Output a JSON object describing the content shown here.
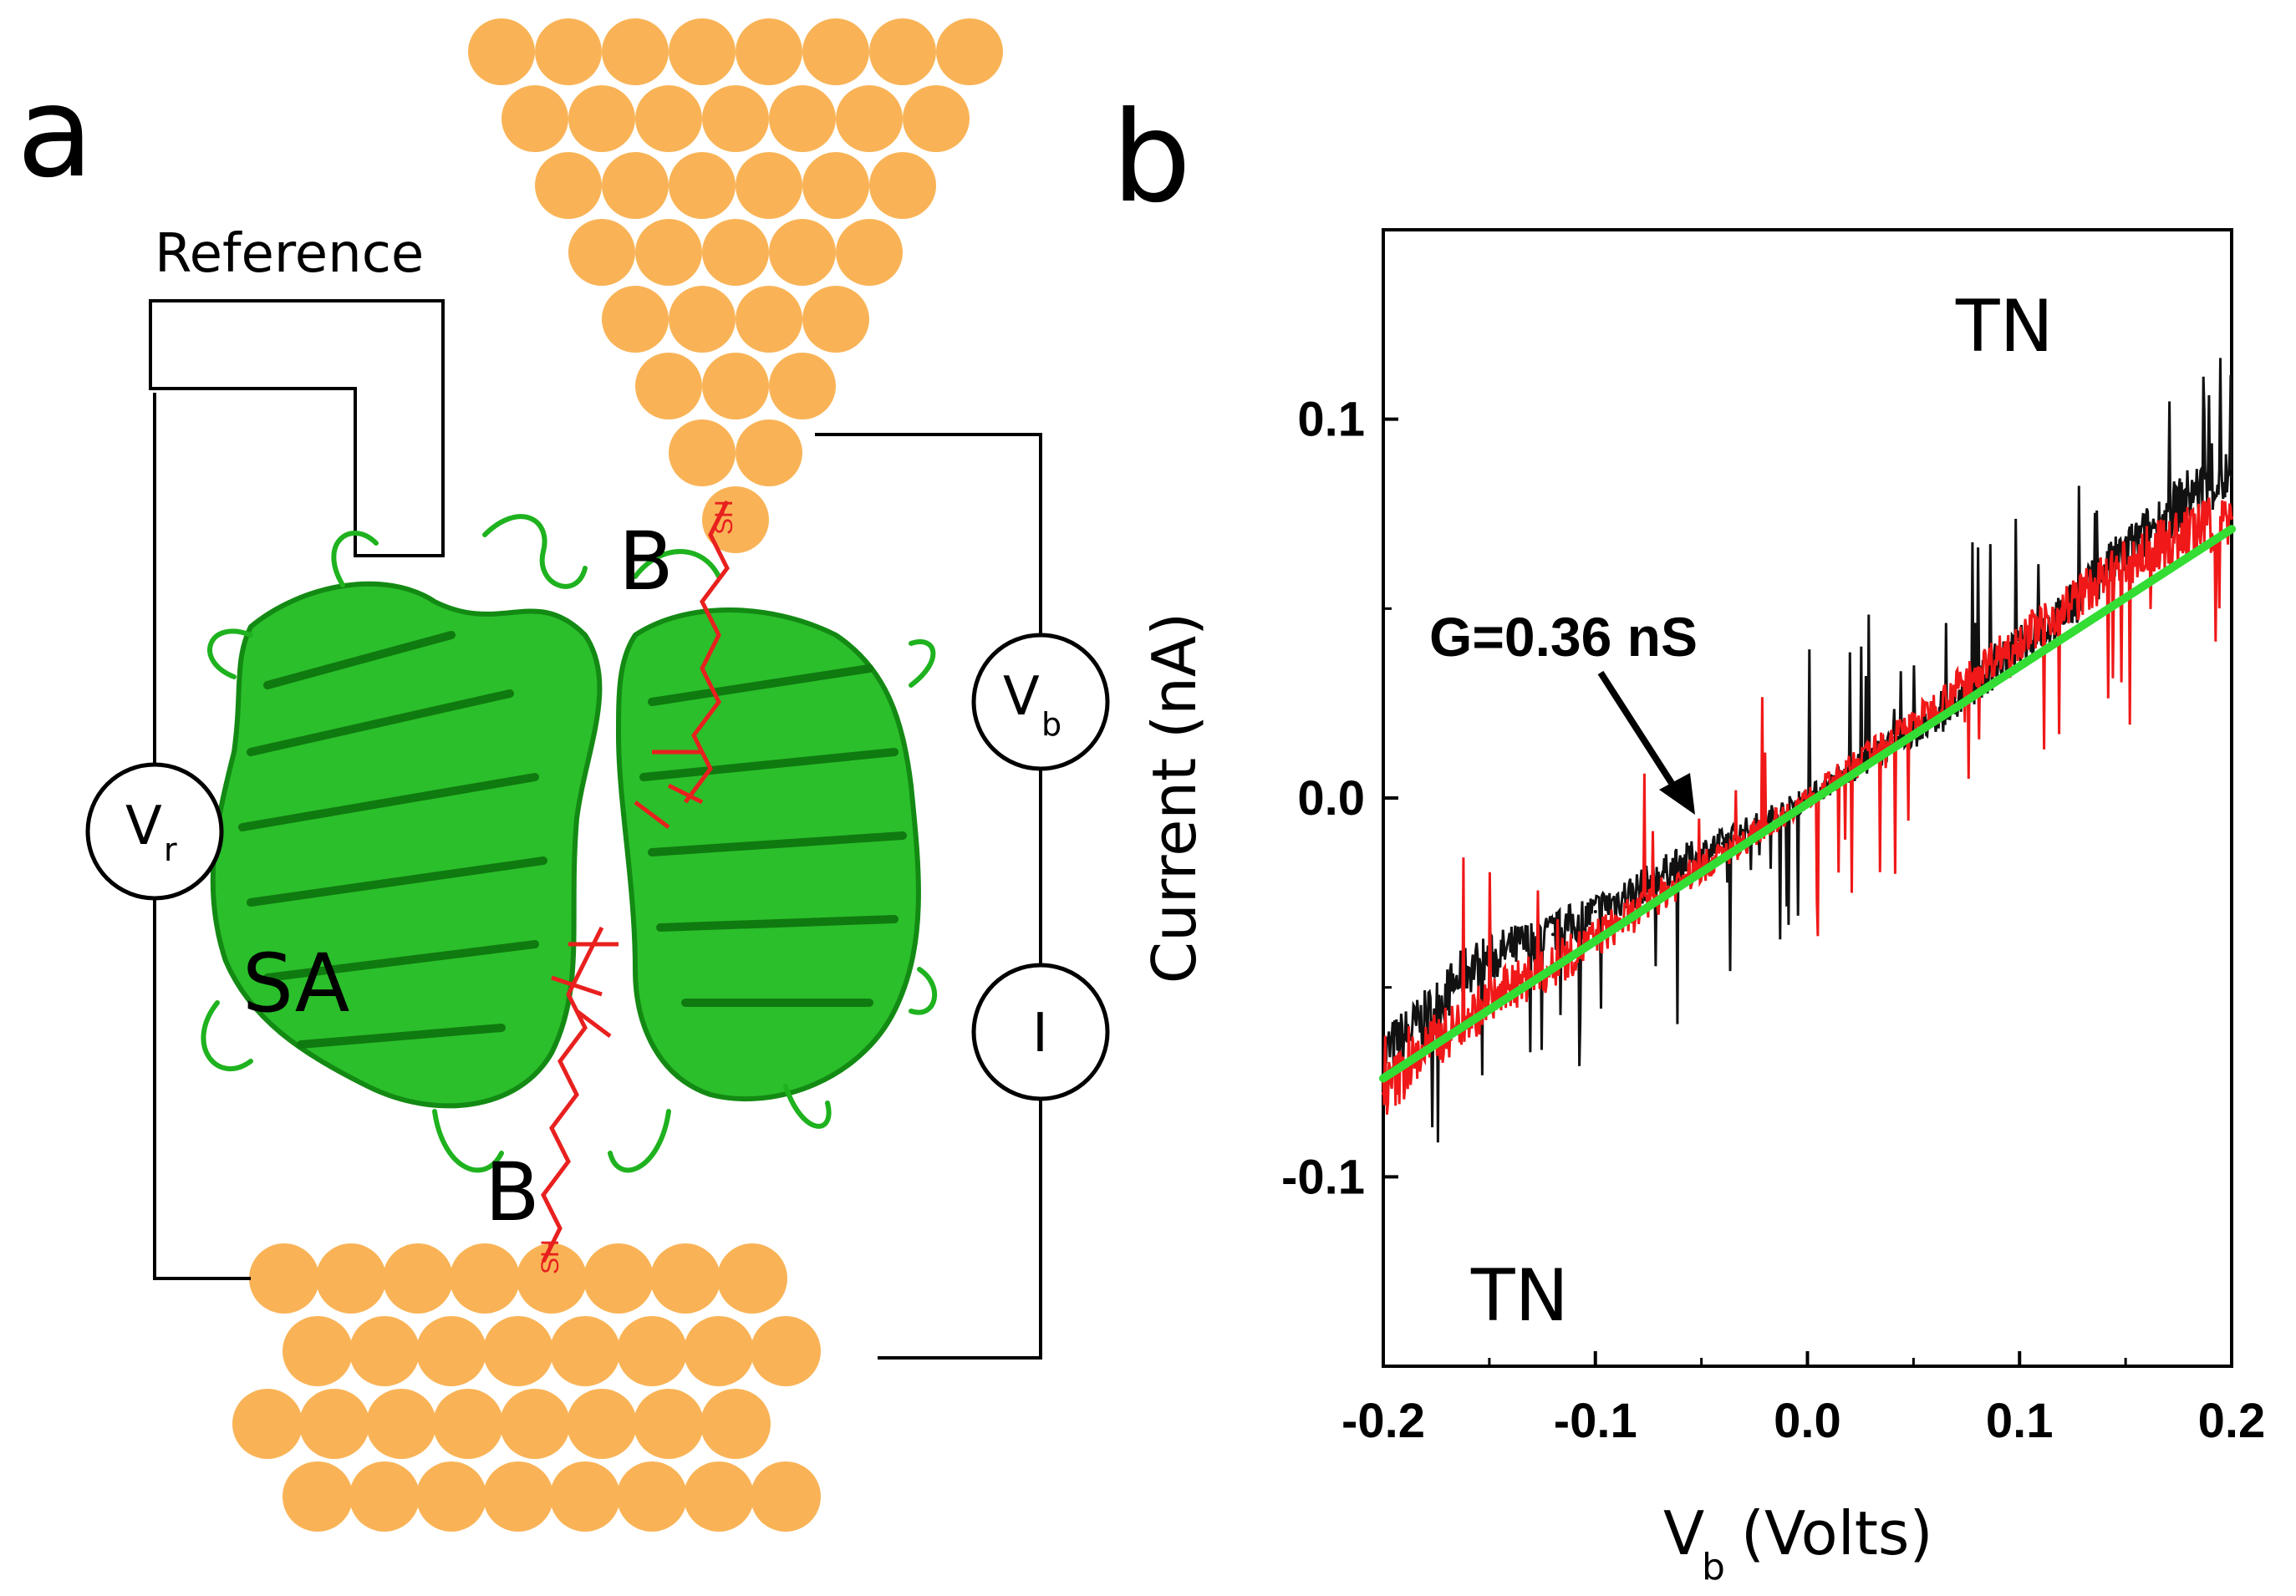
{
  "panel_a": {
    "letter": "a",
    "reference_label": "Reference",
    "vr_label": "V",
    "vr_sub": "r",
    "vb_label": "V",
    "vb_sub": "b",
    "i_label": "I",
    "protein_label": "SA",
    "biotin_top": "B",
    "biotin_bottom": "B",
    "thiol": "SH",
    "colors": {
      "electrode": "#f9b356",
      "protein": "#1fb21f",
      "molecule": "#e8201e"
    }
  },
  "panel_b": {
    "letter": "b",
    "annotation": "G=0.36 nS",
    "tn_top": "TN",
    "tn_bottom": "TN"
  },
  "chart_data": {
    "type": "line",
    "title": "",
    "xlabel_main": "V",
    "xlabel_sub": "b",
    "xlabel_rest": " (Volts)",
    "ylabel": "Current (nA)",
    "xlim": [
      -0.2,
      0.2
    ],
    "ylim": [
      -0.15,
      0.15
    ],
    "x_ticks": [
      "-0.2",
      "-0.1",
      "0.0",
      "0.1",
      "0.2"
    ],
    "x_tick_values": [
      -0.2,
      -0.1,
      0.0,
      0.1,
      0.2
    ],
    "y_ticks": [
      "-0.1",
      "0.0",
      "0.1"
    ],
    "y_tick_values": [
      -0.1,
      0.0,
      0.1
    ],
    "series": [
      {
        "name": "sweep (black)",
        "color": "#111111",
        "x": [
          -0.2,
          -0.18,
          -0.16,
          -0.14,
          -0.12,
          -0.1,
          -0.08,
          -0.06,
          -0.04,
          -0.02,
          0.0,
          0.02,
          0.04,
          0.06,
          0.08,
          0.1,
          0.12,
          0.14,
          0.16,
          0.18,
          0.2
        ],
        "y": [
          -0.068,
          -0.058,
          -0.045,
          -0.04,
          -0.036,
          -0.03,
          -0.024,
          -0.017,
          -0.012,
          -0.006,
          0.0,
          0.007,
          0.014,
          0.02,
          0.03,
          0.04,
          0.048,
          0.06,
          0.07,
          0.08,
          0.085
        ]
      },
      {
        "name": "sweep (red)",
        "color": "#f01818",
        "x": [
          -0.2,
          -0.18,
          -0.16,
          -0.14,
          -0.12,
          -0.1,
          -0.08,
          -0.06,
          -0.04,
          -0.02,
          0.0,
          0.02,
          0.04,
          0.06,
          0.08,
          0.1,
          0.12,
          0.14,
          0.16,
          0.18,
          0.2
        ],
        "y": [
          -0.078,
          -0.066,
          -0.058,
          -0.05,
          -0.045,
          -0.037,
          -0.03,
          -0.022,
          -0.015,
          -0.008,
          0.0,
          0.008,
          0.016,
          0.024,
          0.034,
          0.042,
          0.05,
          0.058,
          0.065,
          0.07,
          0.074
        ]
      },
      {
        "name": "linear fit",
        "color": "#33dd33",
        "x": [
          -0.2,
          0.2
        ],
        "y": [
          -0.074,
          0.071
        ]
      }
    ],
    "fit_conductance": "G=0.36 nS"
  }
}
